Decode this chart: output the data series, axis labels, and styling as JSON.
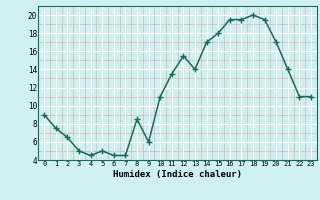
{
  "x": [
    0,
    1,
    2,
    3,
    4,
    5,
    6,
    7,
    8,
    9,
    10,
    11,
    12,
    13,
    14,
    15,
    16,
    17,
    18,
    19,
    20,
    21,
    22,
    23
  ],
  "y": [
    9,
    7.5,
    6.5,
    5,
    4.5,
    5,
    4.5,
    4.5,
    8.5,
    6,
    11,
    13.5,
    15.5,
    14,
    17,
    18,
    19.5,
    19.5,
    20,
    19.5,
    17,
    14,
    11,
    11
  ],
  "line_color": "#1a6b5a",
  "marker_color": "#1a6b5a",
  "bg_color": "#cef0f0",
  "grid_major_color": "#ffffff",
  "grid_minor_color": "#c8d8d8",
  "xlabel": "Humidex (Indice chaleur)",
  "ylim": [
    4,
    21
  ],
  "xlim": [
    -0.5,
    23.5
  ],
  "yticks": [
    4,
    6,
    8,
    10,
    12,
    14,
    16,
    18,
    20
  ],
  "xticks": [
    0,
    1,
    2,
    3,
    4,
    5,
    6,
    7,
    8,
    9,
    10,
    11,
    12,
    13,
    14,
    15,
    16,
    17,
    18,
    19,
    20,
    21,
    22,
    23
  ]
}
